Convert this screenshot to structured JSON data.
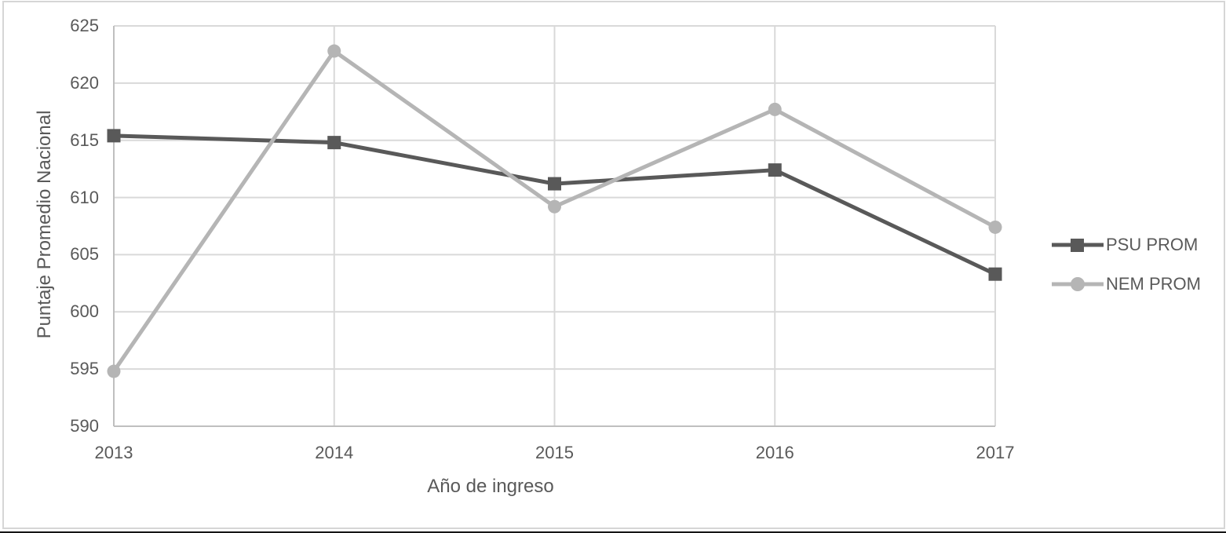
{
  "chart_data": {
    "type": "line",
    "title": "",
    "xlabel": "Año de ingreso",
    "ylabel": "Puntaje Promedio Nacional",
    "categories": [
      "2013",
      "2014",
      "2015",
      "2016",
      "2017"
    ],
    "series": [
      {
        "name": "PSU PROM",
        "values": [
          615.4,
          614.8,
          611.2,
          612.4,
          603.3
        ],
        "color": "#595959",
        "marker": "square"
      },
      {
        "name": "NEM PROM",
        "values": [
          594.8,
          622.8,
          609.2,
          617.7,
          607.4
        ],
        "color": "#b5b5b5",
        "marker": "circle"
      }
    ],
    "ylim": [
      590,
      625
    ],
    "ytick_step": 5,
    "yticks": [
      "625",
      "620",
      "615",
      "610",
      "605",
      "600",
      "595",
      "590"
    ],
    "grid": true,
    "legend_position": "right"
  },
  "colors": {
    "gridline": "#d9d9d9",
    "axis": "#bfbfbf",
    "text": "#595959",
    "frame_border": "#d6d6d6",
    "bottom_edge": "#151515"
  }
}
